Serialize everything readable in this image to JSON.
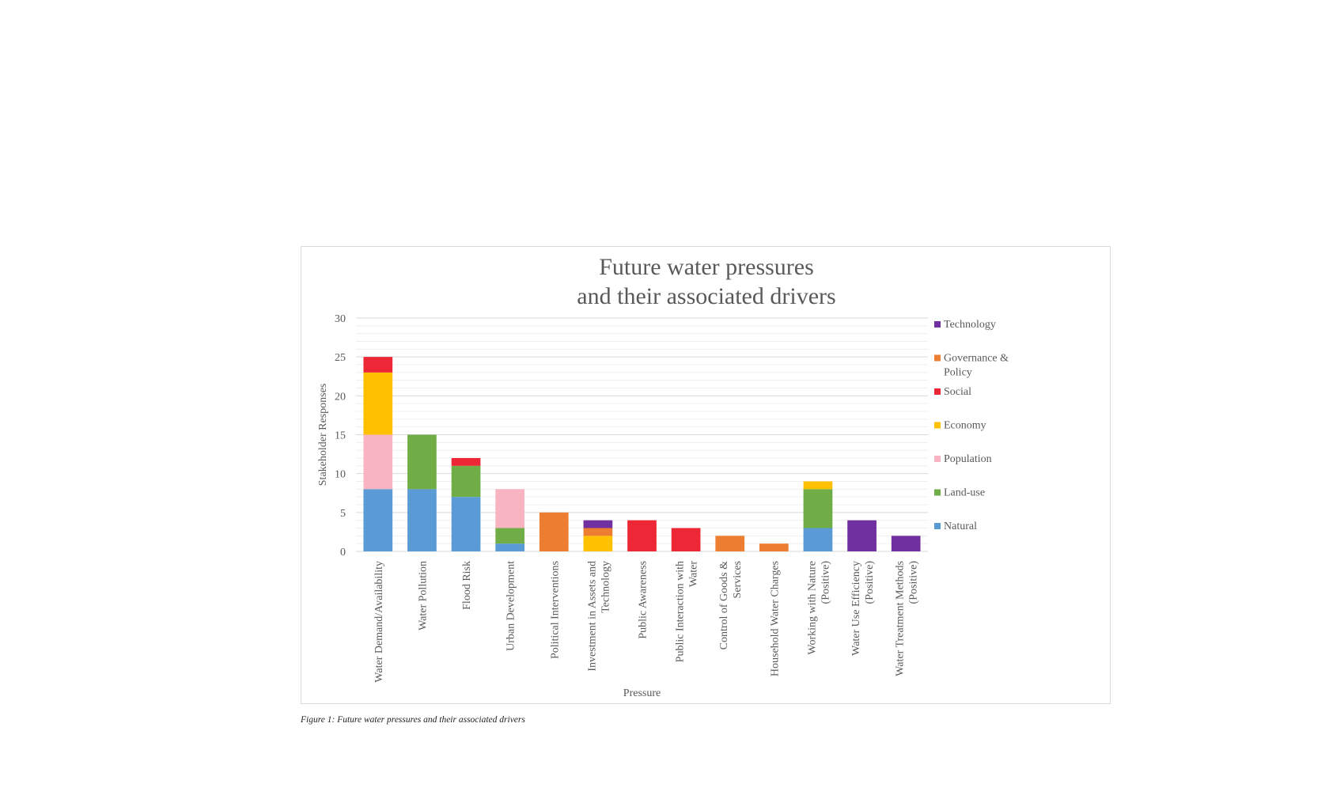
{
  "caption": "Figure 1: Future water pressures and their associated drivers",
  "chart_data": {
    "type": "bar",
    "stacked": true,
    "title": [
      "Future water pressures",
      "and their associated drivers"
    ],
    "xlabel": "Pressure",
    "ylabel": "Stakeholder Responses",
    "ylim": [
      0,
      30
    ],
    "yticks": [
      0,
      5,
      10,
      15,
      20,
      25,
      30
    ],
    "grid": true,
    "legend_position": "right",
    "categories": [
      [
        "Water Demand/Availability"
      ],
      [
        "Water Pollution"
      ],
      [
        "Flood Risk"
      ],
      [
        "Urban Development"
      ],
      [
        "Political Interventions"
      ],
      [
        "Investment in Assets and",
        "Technology"
      ],
      [
        "Public Awareness"
      ],
      [
        "Public Interaction with",
        "Water"
      ],
      [
        "Control of Goods &",
        "Services"
      ],
      [
        "Household Water Charges"
      ],
      [
        "Working with Nature",
        "(Positive)"
      ],
      [
        "Water Use Efficiency",
        "(Positive)"
      ],
      [
        "Water Treatment Methods",
        "(Positive)"
      ]
    ],
    "series": [
      {
        "name": "Natural",
        "color": "#5b9bd5",
        "values": [
          8,
          8,
          7,
          1,
          0,
          0,
          0,
          0,
          0,
          0,
          3,
          0,
          0
        ]
      },
      {
        "name": "Land-use",
        "color": "#70ad47",
        "values": [
          0,
          7,
          4,
          2,
          0,
          0,
          0,
          0,
          0,
          0,
          5,
          0,
          0
        ]
      },
      {
        "name": "Population",
        "color": "#f8b4c0",
        "values": [
          7,
          0,
          0,
          5,
          0,
          0,
          0,
          0,
          0,
          0,
          0,
          0,
          0
        ]
      },
      {
        "name": "Economy",
        "color": "#ffc000",
        "values": [
          8,
          0,
          0,
          0,
          0,
          2,
          0,
          0,
          0,
          0,
          1,
          0,
          0
        ]
      },
      {
        "name": "Social",
        "color": "#ee2737",
        "values": [
          2,
          0,
          1,
          0,
          0,
          0,
          4,
          3,
          0,
          0,
          0,
          0,
          0
        ]
      },
      {
        "name": "Governance & Policy",
        "color": "#ed7d31",
        "values": [
          0,
          0,
          0,
          0,
          5,
          1,
          0,
          0,
          2,
          1,
          0,
          0,
          0
        ]
      },
      {
        "name": "Technology",
        "color": "#7030a0",
        "values": [
          0,
          0,
          0,
          0,
          0,
          1,
          0,
          0,
          0,
          0,
          0,
          4,
          2
        ]
      }
    ],
    "legend": [
      [
        "Technology"
      ],
      [
        "Governance &",
        "Policy"
      ],
      [
        "Social"
      ],
      [
        "Economy"
      ],
      [
        "Population"
      ],
      [
        "Land-use"
      ],
      [
        "Natural"
      ]
    ]
  }
}
